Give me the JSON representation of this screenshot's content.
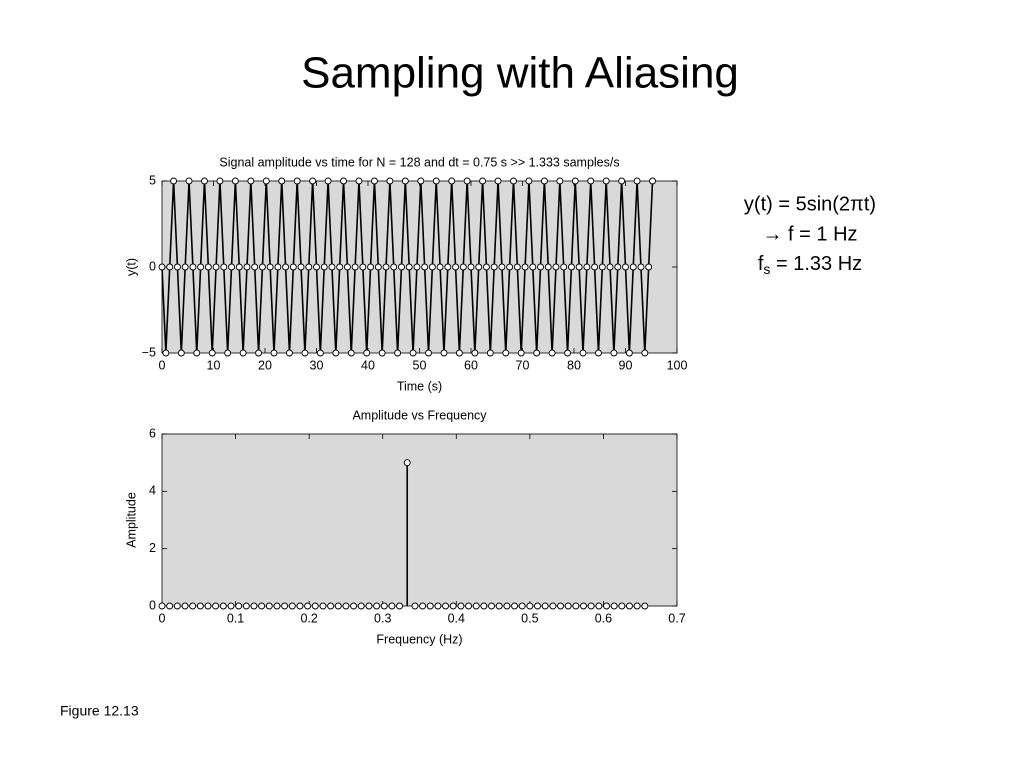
{
  "title": "Sampling with Aliasing",
  "annotations": [
    "y(t) = 5sin(2πt)",
    "→ f = 1 Hz"
  ],
  "sampling_rate": {
    "symbol": "f",
    "subscript": "s",
    "text": " = 1.33 Hz"
  },
  "caption": "Figure 12.13",
  "chart_data": [
    {
      "type": "line",
      "title": "Signal amplitude vs time for N = 128 and dt = 0.75 s >> 1.333 samples/s",
      "xlabel": "Time (s)",
      "ylabel": "y(t)",
      "color": "#000000",
      "marker_fill": "#ffffff",
      "xlim": [
        0,
        100
      ],
      "xticks": [
        0,
        10,
        20,
        30,
        40,
        50,
        60,
        70,
        80,
        90,
        100
      ],
      "ylim": [
        -5,
        5
      ],
      "yticks": [
        {
          "value": -5,
          "label": "−5"
        },
        0,
        5
      ],
      "grid": false,
      "x": [
        0,
        0.75,
        1.5,
        2.25,
        3,
        3.75,
        4.5,
        5.25,
        6,
        6.75,
        7.5,
        8.25,
        9,
        9.75,
        10.5,
        11.25,
        12,
        12.75,
        13.5,
        14.25,
        15,
        15.75,
        16.5,
        17.25,
        18,
        18.75,
        19.5,
        20.25,
        21,
        21.75,
        22.5,
        23.25,
        24,
        24.75,
        25.5,
        26.25,
        27,
        27.75,
        28.5,
        29.25,
        30,
        30.75,
        31.5,
        32.25,
        33,
        33.75,
        34.5,
        35.25,
        36,
        36.75,
        37.5,
        38.25,
        39,
        39.75,
        40.5,
        41.25,
        42,
        42.75,
        43.5,
        44.25,
        45,
        45.75,
        46.5,
        47.25,
        48,
        48.75,
        49.5,
        50.25,
        51,
        51.75,
        52.5,
        53.25,
        54,
        54.75,
        55.5,
        56.25,
        57,
        57.75,
        58.5,
        59.25,
        60,
        60.75,
        61.5,
        62.25,
        63,
        63.75,
        64.5,
        65.25,
        66,
        66.75,
        67.5,
        68.25,
        69,
        69.75,
        70.5,
        71.25,
        72,
        72.75,
        73.5,
        74.25,
        75,
        75.75,
        76.5,
        77.25,
        78,
        78.75,
        79.5,
        80.25,
        81,
        81.75,
        82.5,
        83.25,
        84,
        84.75,
        85.5,
        86.25,
        87,
        87.75,
        88.5,
        89.25,
        90,
        90.75,
        91.5,
        92.25,
        93,
        93.75,
        94.5,
        95.25
      ],
      "values": [
        0,
        -5,
        0,
        5,
        0,
        -5,
        0,
        5,
        0,
        -5,
        0,
        5,
        0,
        -5,
        0,
        5,
        0,
        -5,
        0,
        5,
        0,
        -5,
        0,
        5,
        0,
        -5,
        0,
        5,
        0,
        -5,
        0,
        5,
        0,
        -5,
        0,
        5,
        0,
        -5,
        0,
        5,
        0,
        -5,
        0,
        5,
        0,
        -5,
        0,
        5,
        0,
        -5,
        0,
        5,
        0,
        -5,
        0,
        5,
        0,
        -5,
        0,
        5,
        0,
        -5,
        0,
        5,
        0,
        -5,
        0,
        5,
        0,
        -5,
        0,
        5,
        0,
        -5,
        0,
        5,
        0,
        -5,
        0,
        5,
        0,
        -5,
        0,
        5,
        0,
        -5,
        0,
        5,
        0,
        -5,
        0,
        5,
        0,
        -5,
        0,
        5,
        0,
        -5,
        0,
        5,
        0,
        -5,
        0,
        5,
        0,
        -5,
        0,
        5,
        0,
        -5,
        0,
        5,
        0,
        -5,
        0,
        5,
        0,
        -5,
        0,
        5,
        0,
        -5,
        0,
        5,
        0,
        -5,
        0,
        5
      ]
    },
    {
      "type": "stem",
      "title": "Amplitude vs Frequency",
      "xlabel": "Frequency (Hz)",
      "ylabel": "Amplitude",
      "color": "#000000",
      "marker_fill": "#ffffff",
      "xlim": [
        0,
        0.7
      ],
      "xticks": [
        0,
        0.1,
        0.2,
        0.3,
        0.4,
        0.5,
        0.6,
        0.7
      ],
      "ylim": [
        0,
        6
      ],
      "yticks": [
        0,
        2,
        4,
        6
      ],
      "grid": false,
      "x": [
        0,
        0.0104,
        0.0208,
        0.0313,
        0.0417,
        0.0521,
        0.0625,
        0.0729,
        0.0833,
        0.0938,
        0.1042,
        0.1146,
        0.125,
        0.1354,
        0.1458,
        0.1563,
        0.1667,
        0.1771,
        0.1875,
        0.1979,
        0.2083,
        0.2188,
        0.2292,
        0.2396,
        0.25,
        0.2604,
        0.2708,
        0.2813,
        0.2917,
        0.3021,
        0.3125,
        0.3229,
        0.3333,
        0.3438,
        0.3542,
        0.3646,
        0.375,
        0.3854,
        0.3958,
        0.4063,
        0.4167,
        0.4271,
        0.4375,
        0.4479,
        0.4583,
        0.4688,
        0.4792,
        0.4896,
        0.5,
        0.5104,
        0.5208,
        0.5313,
        0.5417,
        0.5521,
        0.5625,
        0.5729,
        0.5833,
        0.5938,
        0.6042,
        0.6146,
        0.625,
        0.6354,
        0.6458,
        0.6563
      ],
      "values": [
        0,
        0,
        0,
        0,
        0,
        0,
        0,
        0,
        0,
        0,
        0,
        0,
        0,
        0,
        0,
        0,
        0,
        0,
        0,
        0,
        0,
        0,
        0,
        0,
        0,
        0,
        0,
        0,
        0,
        0,
        0,
        0,
        5,
        0,
        0,
        0,
        0,
        0,
        0,
        0,
        0,
        0,
        0,
        0,
        0,
        0,
        0,
        0,
        0,
        0,
        0,
        0,
        0,
        0,
        0,
        0,
        0,
        0,
        0,
        0,
        0,
        0,
        0,
        0
      ]
    }
  ]
}
